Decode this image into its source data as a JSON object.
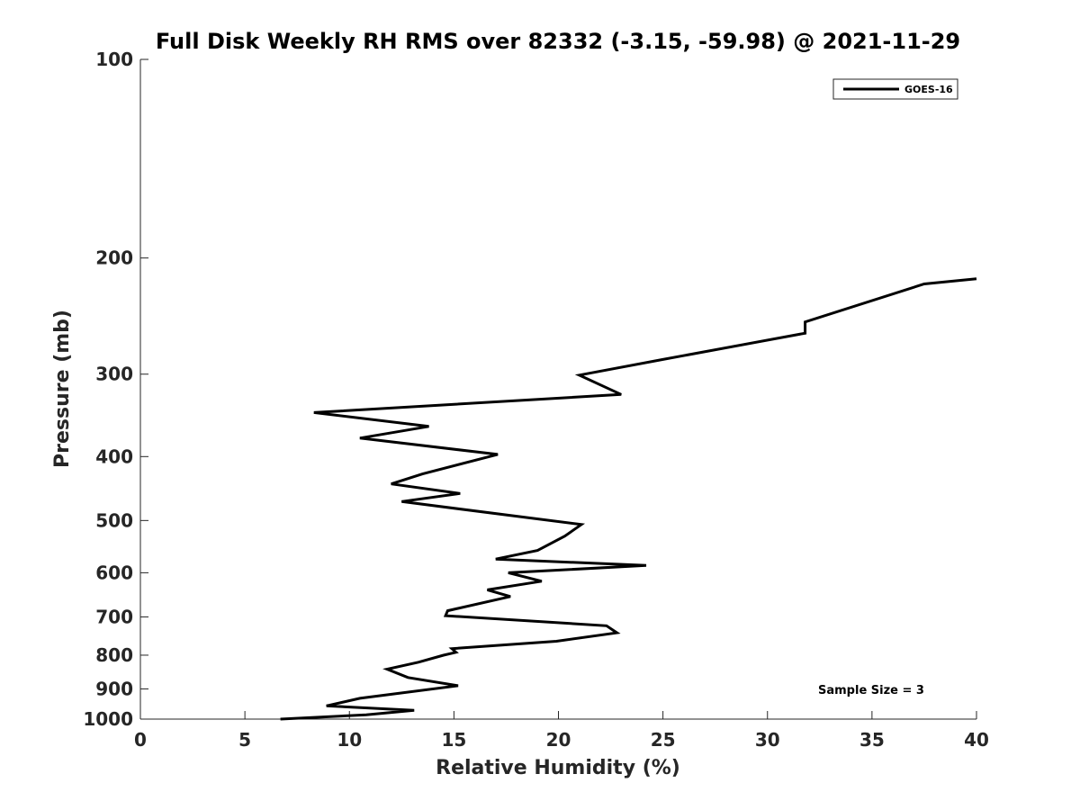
{
  "chart_data": {
    "type": "line",
    "title": "Full Disk Weekly RH RMS over 82332 (-3.15, -59.98) @ 2021-11-29",
    "xlabel": "Relative Humidity (%)",
    "ylabel": "Pressure (mb)",
    "xlim": [
      0,
      40
    ],
    "ylim": [
      100,
      1000
    ],
    "yscale": "log",
    "yreversed": true,
    "xticks": [
      "0",
      "5",
      "10",
      "15",
      "20",
      "25",
      "30",
      "35",
      "40"
    ],
    "yticks": [
      "100",
      "200",
      "300",
      "400",
      "500",
      "600",
      "700",
      "800",
      "900",
      "1000"
    ],
    "grid": false,
    "legend_position": "top-right",
    "annotation": "Sample Size = 3",
    "series": [
      {
        "name": "GOES-16",
        "color": "#000000",
        "x": [
          40.0,
          37.5,
          31.8,
          31.8,
          25.0,
          21.0,
          23.0,
          8.3,
          13.8,
          10.5,
          17.1,
          13.5,
          12.0,
          15.3,
          12.5,
          21.1,
          20.3,
          19.0,
          17.0,
          24.2,
          17.6,
          19.2,
          16.6,
          17.7,
          14.7,
          14.6,
          22.3,
          22.8,
          19.9,
          14.9,
          15.1,
          14.5,
          13.3,
          11.8,
          12.8,
          15.2,
          10.5,
          8.9,
          13.1,
          10.8,
          6.7
        ],
        "y": [
          215,
          219,
          250,
          260,
          285,
          301,
          322,
          343,
          360,
          375,
          397,
          425,
          440,
          455,
          468,
          507,
          528,
          555,
          572,
          585,
          600,
          618,
          637,
          652,
          685,
          697,
          722,
          740,
          762,
          782,
          792,
          800,
          820,
          840,
          865,
          890,
          930,
          955,
          970,
          985,
          1000
        ]
      }
    ]
  }
}
